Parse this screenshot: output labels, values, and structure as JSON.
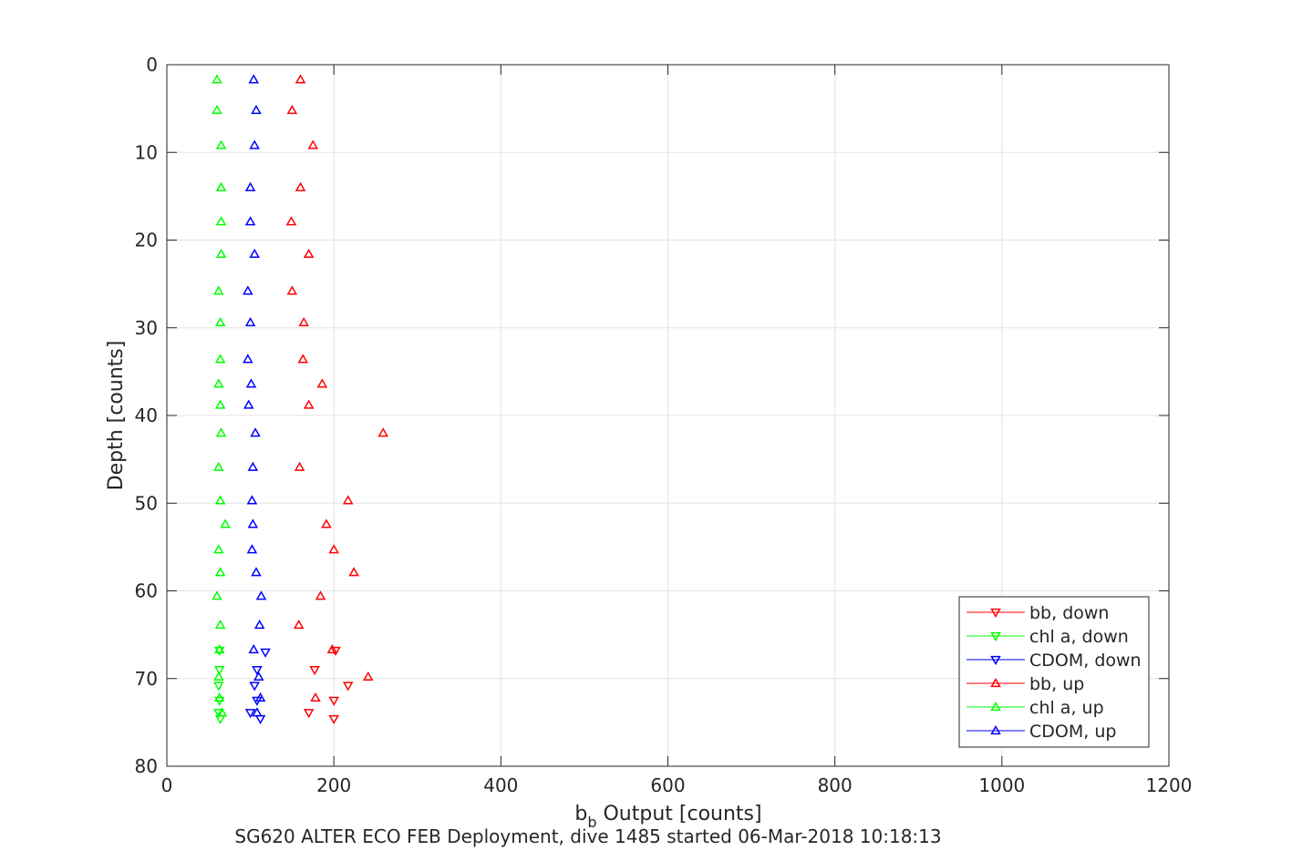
{
  "caption": "SG620 ALTER ECO FEB Deployment, dive 1485 started 06-Mar-2018 10:18:13",
  "chart_data": {
    "type": "scatter",
    "xlabel_main": "b",
    "xlabel_sub": "b",
    "xlabel_rest": " Output [counts]",
    "ylabel": "Depth [counts]",
    "xlim": [
      0,
      1200
    ],
    "ylim": [
      0,
      80
    ],
    "y_reversed": true,
    "xticks": [
      0,
      200,
      400,
      600,
      800,
      1000,
      1200
    ],
    "yticks": [
      0,
      10,
      20,
      30,
      40,
      50,
      60,
      70,
      80
    ],
    "grid": true,
    "legend_position": "bottom-right",
    "series": [
      {
        "name": "bb, down",
        "color": "#ff0000",
        "marker": "triangle-down",
        "points": [
          [
            202,
            66.8
          ],
          [
            177,
            69.0
          ],
          [
            217,
            70.8
          ],
          [
            200,
            72.5
          ],
          [
            170,
            73.9
          ],
          [
            200,
            74.6
          ]
        ]
      },
      {
        "name": "chl a, down",
        "color": "#00ff00",
        "marker": "triangle-down",
        "points": [
          [
            63,
            66.8
          ],
          [
            63,
            69.0
          ],
          [
            62,
            70.8
          ],
          [
            63,
            72.5
          ],
          [
            62,
            73.9
          ],
          [
            64,
            74.6
          ]
        ]
      },
      {
        "name": "CDOM, down",
        "color": "#0000ff",
        "marker": "triangle-down",
        "points": [
          [
            118,
            67.0
          ],
          [
            108,
            69.0
          ],
          [
            105,
            70.8
          ],
          [
            108,
            72.5
          ],
          [
            100,
            73.9
          ],
          [
            112,
            74.6
          ]
        ]
      },
      {
        "name": "bb, up",
        "color": "#ff0000",
        "marker": "triangle-up",
        "points": [
          [
            160,
            1.7
          ],
          [
            150,
            5.2
          ],
          [
            175,
            9.2
          ],
          [
            160,
            14.0
          ],
          [
            149,
            17.9
          ],
          [
            170,
            21.6
          ],
          [
            150,
            25.8
          ],
          [
            164,
            29.4
          ],
          [
            163,
            33.6
          ],
          [
            186,
            36.4
          ],
          [
            170,
            38.8
          ],
          [
            259,
            42.0
          ],
          [
            159,
            45.9
          ],
          [
            217,
            49.7
          ],
          [
            191,
            52.4
          ],
          [
            200,
            55.3
          ],
          [
            224,
            57.9
          ],
          [
            184,
            60.6
          ],
          [
            158,
            63.9
          ],
          [
            198,
            66.7
          ],
          [
            241,
            69.8
          ],
          [
            178,
            72.2
          ]
        ]
      },
      {
        "name": "chl a, up",
        "color": "#00ff00",
        "marker": "triangle-up",
        "points": [
          [
            60,
            1.7
          ],
          [
            60,
            5.2
          ],
          [
            65,
            9.2
          ],
          [
            65,
            14.0
          ],
          [
            65,
            17.9
          ],
          [
            65,
            21.6
          ],
          [
            62,
            25.8
          ],
          [
            64,
            29.4
          ],
          [
            64,
            33.6
          ],
          [
            62,
            36.4
          ],
          [
            64,
            38.8
          ],
          [
            65,
            42.0
          ],
          [
            62,
            45.9
          ],
          [
            64,
            49.7
          ],
          [
            70,
            52.4
          ],
          [
            62,
            55.3
          ],
          [
            64,
            57.9
          ],
          [
            60,
            60.6
          ],
          [
            64,
            63.9
          ],
          [
            63,
            66.7
          ],
          [
            62,
            69.8
          ],
          [
            63,
            72.2
          ],
          [
            66,
            73.9
          ]
        ]
      },
      {
        "name": "CDOM, up",
        "color": "#0000ff",
        "marker": "triangle-up",
        "points": [
          [
            104,
            1.7
          ],
          [
            107,
            5.2
          ],
          [
            105,
            9.2
          ],
          [
            100,
            14.0
          ],
          [
            100,
            17.9
          ],
          [
            105,
            21.6
          ],
          [
            97,
            25.8
          ],
          [
            100,
            29.4
          ],
          [
            97,
            33.6
          ],
          [
            101,
            36.4
          ],
          [
            98,
            38.8
          ],
          [
            106,
            42.0
          ],
          [
            103,
            45.9
          ],
          [
            102,
            49.7
          ],
          [
            103,
            52.4
          ],
          [
            102,
            55.3
          ],
          [
            107,
            57.9
          ],
          [
            113,
            60.6
          ],
          [
            111,
            63.9
          ],
          [
            104,
            66.7
          ],
          [
            110,
            69.8
          ],
          [
            112,
            72.2
          ],
          [
            108,
            73.9
          ]
        ]
      }
    ]
  }
}
